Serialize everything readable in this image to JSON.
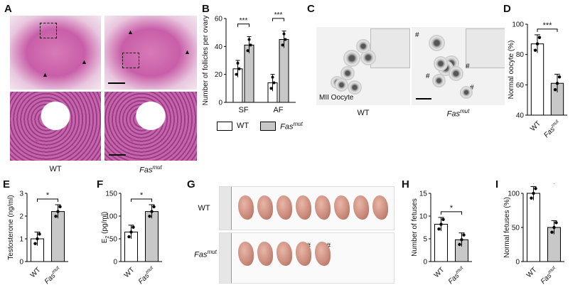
{
  "panels": {
    "A": {
      "label": "A",
      "wt": "WT",
      "mut_base": "Fas",
      "mut_sup": "mut"
    },
    "B": {
      "label": "B"
    },
    "C": {
      "label": "C",
      "overlay": "MII Oocyte",
      "wt": "WT",
      "mut_base": "Fas",
      "mut_sup": "mut",
      "marks": [
        "#",
        "#",
        "#",
        "#"
      ]
    },
    "D": {
      "label": "D"
    },
    "E": {
      "label": "E"
    },
    "F": {
      "label": "F"
    },
    "G": {
      "label": "G",
      "wt": "WT",
      "mut_base": "Fas",
      "mut_sup": "mut",
      "marks": [
        "#",
        "#"
      ]
    },
    "H": {
      "label": "H"
    },
    "I": {
      "label": "I"
    }
  },
  "legend": {
    "wt": "WT",
    "mut_base": "Fas",
    "mut_sup": "mut",
    "wt_color": "#ffffff",
    "mut_color": "#c8c8c8"
  },
  "chart_data": [
    {
      "id": "B",
      "type": "bar",
      "ylabel": "Number of follicles per ovary",
      "categories": [
        "SF",
        "AF"
      ],
      "series": [
        {
          "name": "WT",
          "values": [
            24,
            14
          ]
        },
        {
          "name": "Fasmut",
          "values": [
            41,
            45
          ]
        }
      ],
      "ylim": [
        0,
        60
      ],
      "yticks": [
        "0",
        "20",
        "40",
        "60"
      ],
      "sig": [
        "***",
        "***"
      ]
    },
    {
      "id": "D",
      "type": "bar",
      "ylabel": "Normal oocyte (%)",
      "categories": [
        "WT",
        "Fasmut"
      ],
      "values": [
        87,
        61
      ],
      "ylim": [
        40,
        100
      ],
      "yticks": [
        "40",
        "60",
        "80",
        "100"
      ],
      "sig": "***"
    },
    {
      "id": "E",
      "type": "bar",
      "ylabel": "Testosterone (ng/ml)",
      "categories": [
        "WT",
        "Fasmut"
      ],
      "values": [
        1.0,
        2.2
      ],
      "ylim": [
        0,
        3
      ],
      "yticks": [
        "0",
        "1",
        "2",
        "3"
      ],
      "sig": "*"
    },
    {
      "id": "F",
      "type": "bar",
      "ylabel": "E2 (pg/ml)",
      "categories": [
        "WT",
        "Fasmut"
      ],
      "values": [
        65,
        110
      ],
      "ylim": [
        0,
        150
      ],
      "yticks": [
        "0",
        "50",
        "100",
        "150"
      ],
      "sig": "*"
    },
    {
      "id": "H",
      "type": "bar",
      "ylabel": "Number of fetuses",
      "categories": [
        "WT",
        "Fasmut"
      ],
      "values": [
        8.2,
        4.8
      ],
      "ylim": [
        0,
        15
      ],
      "yticks": [
        "0",
        "5",
        "10",
        "15"
      ],
      "sig": "*"
    },
    {
      "id": "I",
      "type": "bar",
      "ylabel": "Normal fetuses (%)",
      "categories": [
        "WT",
        "Fasmut"
      ],
      "values": [
        100,
        50
      ],
      "ylim": [
        0,
        100
      ],
      "yticks": [
        "0",
        "50",
        "100"
      ],
      "sig": "*"
    }
  ]
}
